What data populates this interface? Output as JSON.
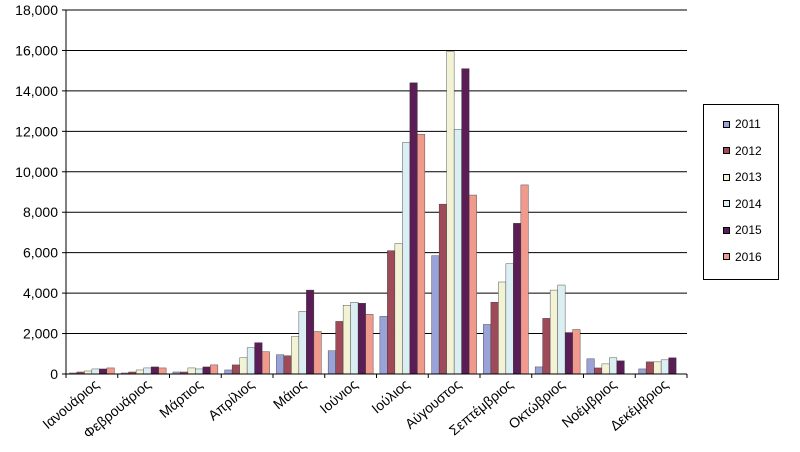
{
  "chart_data": {
    "type": "bar",
    "categories": [
      "Ιανουάριος",
      "Φεβρουάριος",
      "Μάρτιος",
      "Απρίλιος",
      "Μάιος",
      "Ιούνιος",
      "Ιούλιος",
      "Αύγουστος",
      "Σεπτέμβριος",
      "Οκτώβριος",
      "Νοέμβριος",
      "Δεκέμβριος"
    ],
    "series": [
      {
        "name": "2011",
        "color": "#9aa3d8",
        "values": [
          50,
          50,
          100,
          200,
          950,
          1150,
          2850,
          5850,
          2450,
          350,
          750,
          250
        ]
      },
      {
        "name": "2012",
        "color": "#9e4a58",
        "values": [
          100,
          100,
          100,
          450,
          900,
          2600,
          6100,
          8400,
          3550,
          2750,
          300,
          600
        ]
      },
      {
        "name": "2013",
        "color": "#f2f2d4",
        "values": [
          150,
          200,
          300,
          800,
          1850,
          3400,
          6450,
          15950,
          4550,
          4150,
          500,
          600
        ]
      },
      {
        "name": "2014",
        "color": "#dbeef3",
        "values": [
          250,
          300,
          250,
          1300,
          3100,
          3550,
          11450,
          12100,
          5450,
          4400,
          800,
          700
        ]
      },
      {
        "name": "2015",
        "color": "#5a1d55",
        "values": [
          250,
          350,
          350,
          1550,
          4150,
          3500,
          14400,
          15100,
          7450,
          2050,
          650,
          800
        ]
      },
      {
        "name": "2016",
        "color": "#f09a8e",
        "values": [
          300,
          300,
          450,
          1100,
          2100,
          2950,
          11850,
          8850,
          9350,
          2200,
          0,
          0
        ]
      }
    ],
    "ylim": [
      0,
      18000
    ],
    "yticks": [
      0,
      2000,
      4000,
      6000,
      8000,
      10000,
      12000,
      14000,
      16000,
      18000
    ],
    "ytick_labels": [
      "0",
      "2,000",
      "4,000",
      "6,000",
      "8,000",
      "10,000",
      "12,000",
      "14,000",
      "16,000",
      "18,000"
    ],
    "grid": true,
    "legend_position": "right"
  }
}
